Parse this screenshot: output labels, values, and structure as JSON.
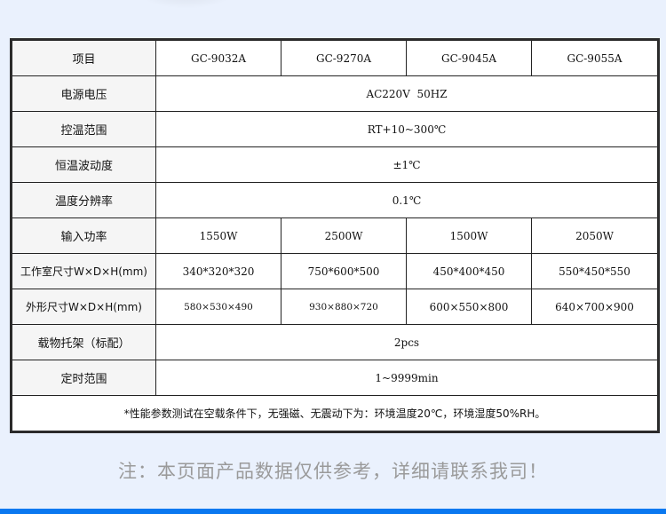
{
  "table": {
    "header": {
      "label": "项目",
      "models": [
        "GC-9032A",
        "GC-9270A",
        "GC-9045A",
        "GC-9055A"
      ]
    },
    "rows": [
      {
        "label": "电源电压",
        "value": "AC220V  50HZ"
      },
      {
        "label": "控温范围",
        "value": "RT+10~300℃"
      },
      {
        "label": "恒温波动度",
        "value": "±1℃"
      },
      {
        "label": "温度分辨率",
        "value": "0.1℃"
      },
      {
        "label": "输入功率",
        "values": [
          "1550W",
          "2500W",
          "1500W",
          "2050W"
        ]
      },
      {
        "label": "工作室尺寸W×D×H(mm)",
        "values": [
          "340*320*320",
          "750*600*500",
          "450*400*450",
          "550*450*550"
        ]
      },
      {
        "label": "外形尺寸W×D×H(mm)",
        "values": [
          "580×530×490",
          "930×880×720",
          "600×550×800",
          "640×700×900"
        ]
      },
      {
        "label": "载物托架（标配）",
        "value": "2pcs"
      },
      {
        "label": "定时范围",
        "value": "1~9999min"
      }
    ],
    "note": "*性能参数测试在空载条件下，无强磁、无震动下为：环境温度20℃，环境湿度50%RH。"
  },
  "footer": {
    "disclaimer": "注：本页面产品数据仅供参考，详细请联系我司！"
  },
  "colors": {
    "background": "#eaf1fd",
    "accent_bar": "#0a78f0",
    "border": "#2b2b2b",
    "label_bg": "#f5f5f5"
  }
}
